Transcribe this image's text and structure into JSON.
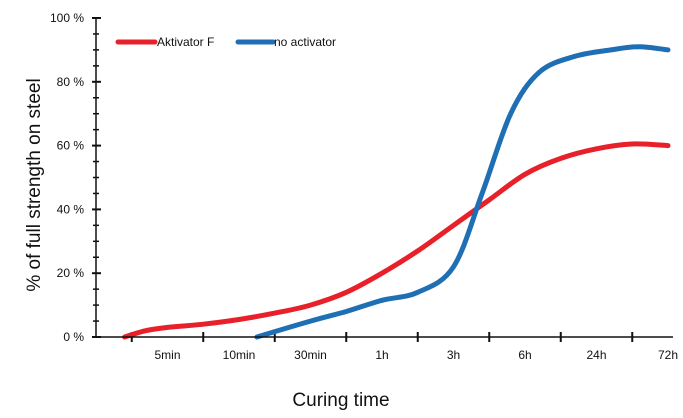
{
  "chart_data": {
    "type": "line",
    "title": "",
    "xlabel": "Curing time",
    "ylabel": "% of full strength on steel",
    "x_tick_labels": [
      "5min",
      "10min",
      "30min",
      "1h",
      "3h",
      "6h",
      "24h",
      "72h"
    ],
    "y_tick_labels": [
      "0 %",
      "20 %",
      "40 %",
      "60 %",
      "80 %",
      "100 %"
    ],
    "y_ticks": [
      0,
      20,
      40,
      60,
      80,
      100
    ],
    "ylim": [
      0,
      100
    ],
    "x_scale": "categorical-log-like (time)",
    "grid": false,
    "legend_position": "top-left",
    "series": [
      {
        "name": "Aktivator F",
        "color": "#e8202a",
        "points": [
          {
            "x": 0.4,
            "y": 0
          },
          {
            "x": 0.7,
            "y": 2
          },
          {
            "x": 1,
            "y": 3
          },
          {
            "x": 1.5,
            "y": 4
          },
          {
            "x": 2,
            "y": 5.5
          },
          {
            "x": 2.5,
            "y": 7.5
          },
          {
            "x": 3,
            "y": 10
          },
          {
            "x": 3.5,
            "y": 14
          },
          {
            "x": 4,
            "y": 20
          },
          {
            "x": 4.5,
            "y": 27
          },
          {
            "x": 5,
            "y": 35
          },
          {
            "x": 5.5,
            "y": 43
          },
          {
            "x": 6,
            "y": 51
          },
          {
            "x": 6.5,
            "y": 56
          },
          {
            "x": 7,
            "y": 59
          },
          {
            "x": 7.5,
            "y": 60.5
          },
          {
            "x": 8,
            "y": 60
          }
        ]
      },
      {
        "name": "no activator",
        "color": "#1f6fb4",
        "points": [
          {
            "x": 2.25,
            "y": 0
          },
          {
            "x": 3,
            "y": 5
          },
          {
            "x": 3.5,
            "y": 8
          },
          {
            "x": 4,
            "y": 11.5
          },
          {
            "x": 4.5,
            "y": 14
          },
          {
            "x": 5,
            "y": 22
          },
          {
            "x": 5.4,
            "y": 45
          },
          {
            "x": 5.8,
            "y": 70
          },
          {
            "x": 6.2,
            "y": 83
          },
          {
            "x": 6.7,
            "y": 88
          },
          {
            "x": 7.2,
            "y": 90
          },
          {
            "x": 7.6,
            "y": 91
          },
          {
            "x": 8,
            "y": 90
          }
        ]
      }
    ]
  }
}
